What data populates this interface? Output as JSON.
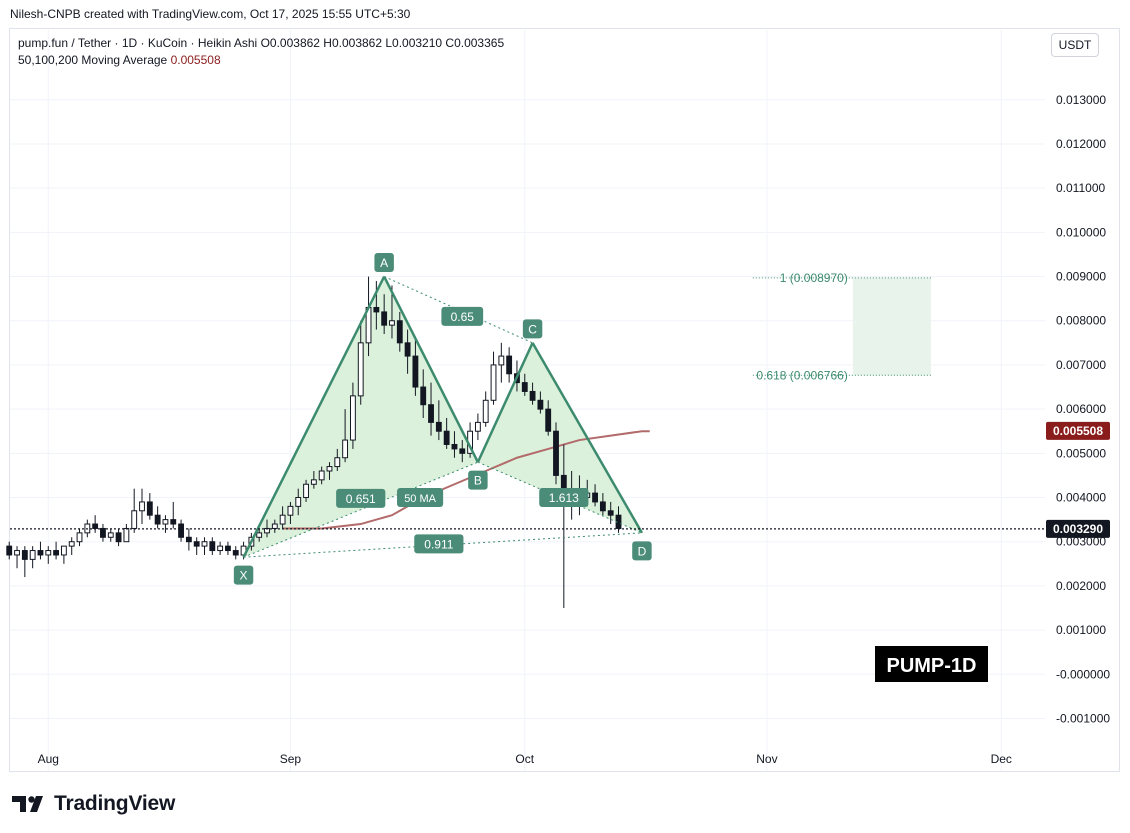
{
  "header": {
    "credit": "Nilesh-CNPB created with TradingView.com, Oct 17, 2025 15:55 UTC+5:30",
    "symbol_line": "pump.fun / Tether · 1D · KuCoin · Heikin Ashi",
    "ohlc": "O0.003862  H0.003862  L0.003210  C0.003365",
    "ma_label": "50,100,200 Moving Average",
    "ma_value": "0.005508",
    "currency": "USDT"
  },
  "footer": {
    "brand": "TradingView"
  },
  "watermark": "PUMP-1D",
  "colors": {
    "pattern_line": "#3d8b6e",
    "pattern_fill": "#d6efd5",
    "label_bg": "#4a8c77",
    "ma_line": "#b26a6a",
    "ma_badge": "#8b1c1c",
    "candle": "#131722",
    "zone_fill": "#e8f3ec",
    "zone_text": "#3d8b6e"
  },
  "chart_data": {
    "type": "candlestick",
    "price_scale": "linear",
    "y_ticks": [
      "0.013000",
      "0.012000",
      "0.011000",
      "0.010000",
      "0.009000",
      "0.008000",
      "0.007000",
      "0.006000",
      "0.005000",
      "0.004000",
      "0.003000",
      "0.002000",
      "0.001000",
      "-0.000000",
      "-0.001000"
    ],
    "y_tick_values": [
      0.013,
      0.012,
      0.011,
      0.01,
      0.009,
      0.008,
      0.007,
      0.006,
      0.005,
      0.004,
      0.003,
      0.002,
      0.001,
      0.0,
      -0.001
    ],
    "ylim": [
      -0.0016,
      0.0139
    ],
    "x_labels": [
      {
        "label": "Aug",
        "day": 0
      },
      {
        "label": "Sep",
        "day": 31
      },
      {
        "label": "Oct",
        "day": 61
      },
      {
        "label": "Nov",
        "day": 92
      },
      {
        "label": "Dec",
        "day": 122
      }
    ],
    "x_day_range": [
      -4.9,
      127.6
    ],
    "current_price": {
      "value": 0.00329,
      "label": "0.003290"
    },
    "ma_badge": {
      "value": 0.005508,
      "label": "0.005508"
    },
    "candles": [
      [
        0.0029,
        0.003,
        0.0026,
        0.0027
      ],
      [
        0.0027,
        0.0029,
        0.0024,
        0.0028
      ],
      [
        0.0028,
        0.0029,
        0.0022,
        0.0026
      ],
      [
        0.0026,
        0.0029,
        0.0024,
        0.0028
      ],
      [
        0.0028,
        0.003,
        0.0026,
        0.0027
      ],
      [
        0.0027,
        0.0029,
        0.0025,
        0.0028
      ],
      [
        0.0028,
        0.003,
        0.0026,
        0.0027
      ],
      [
        0.0027,
        0.0029,
        0.0025,
        0.0029
      ],
      [
        0.0029,
        0.0031,
        0.0027,
        0.003
      ],
      [
        0.003,
        0.0033,
        0.0029,
        0.0032
      ],
      [
        0.0032,
        0.0035,
        0.0031,
        0.0034
      ],
      [
        0.0034,
        0.0036,
        0.0032,
        0.0033
      ],
      [
        0.0033,
        0.0034,
        0.003,
        0.0031
      ],
      [
        0.0031,
        0.0033,
        0.003,
        0.0032
      ],
      [
        0.0032,
        0.0033,
        0.0029,
        0.003
      ],
      [
        0.003,
        0.0034,
        0.003,
        0.0033
      ],
      [
        0.0033,
        0.0042,
        0.0032,
        0.0037
      ],
      [
        0.0037,
        0.0042,
        0.0034,
        0.0039
      ],
      [
        0.0039,
        0.0041,
        0.0035,
        0.0036
      ],
      [
        0.0036,
        0.0038,
        0.0033,
        0.0034
      ],
      [
        0.0034,
        0.0036,
        0.0032,
        0.0035
      ],
      [
        0.0035,
        0.0039,
        0.0033,
        0.0034
      ],
      [
        0.0034,
        0.0035,
        0.003,
        0.0031
      ],
      [
        0.0031,
        0.0033,
        0.0028,
        0.003
      ],
      [
        0.003,
        0.0031,
        0.0027,
        0.0029
      ],
      [
        0.0029,
        0.0031,
        0.0027,
        0.003
      ],
      [
        0.003,
        0.0031,
        0.0027,
        0.0028
      ],
      [
        0.0028,
        0.003,
        0.0027,
        0.0029
      ],
      [
        0.0029,
        0.003,
        0.0027,
        0.0028
      ],
      [
        0.0028,
        0.0029,
        0.0026,
        0.0027
      ],
      [
        0.0027,
        0.003,
        0.0026,
        0.0029
      ],
      [
        0.0029,
        0.0032,
        0.0028,
        0.0031
      ],
      [
        0.0031,
        0.0033,
        0.003,
        0.0032
      ],
      [
        0.0032,
        0.0035,
        0.0031,
        0.0033
      ],
      [
        0.0033,
        0.0035,
        0.0032,
        0.0034
      ],
      [
        0.0034,
        0.0038,
        0.0033,
        0.0036
      ],
      [
        0.0036,
        0.0039,
        0.0034,
        0.0038
      ],
      [
        0.0038,
        0.0042,
        0.0036,
        0.004
      ],
      [
        0.004,
        0.0044,
        0.0039,
        0.0043
      ],
      [
        0.0043,
        0.0046,
        0.0042,
        0.0044
      ],
      [
        0.0044,
        0.0047,
        0.0043,
        0.0046
      ],
      [
        0.0046,
        0.0048,
        0.0044,
        0.0047
      ],
      [
        0.0047,
        0.0051,
        0.0046,
        0.0049
      ],
      [
        0.0049,
        0.006,
        0.0048,
        0.0053
      ],
      [
        0.0053,
        0.0066,
        0.0051,
        0.0063
      ],
      [
        0.0063,
        0.008,
        0.0061,
        0.0075
      ],
      [
        0.0075,
        0.009,
        0.0072,
        0.0083
      ],
      [
        0.0083,
        0.0089,
        0.0078,
        0.0082
      ],
      [
        0.0082,
        0.0086,
        0.0077,
        0.0079
      ],
      [
        0.0079,
        0.0088,
        0.0076,
        0.008
      ],
      [
        0.008,
        0.0082,
        0.0073,
        0.0075
      ],
      [
        0.0075,
        0.0078,
        0.0068,
        0.0072
      ],
      [
        0.0072,
        0.0076,
        0.0063,
        0.0065
      ],
      [
        0.0065,
        0.0069,
        0.0058,
        0.0061
      ],
      [
        0.0061,
        0.0066,
        0.0054,
        0.0057
      ],
      [
        0.0057,
        0.0062,
        0.0053,
        0.0055
      ],
      [
        0.0055,
        0.0058,
        0.0051,
        0.0052
      ],
      [
        0.0052,
        0.0055,
        0.0049,
        0.0051
      ],
      [
        0.0051,
        0.0053,
        0.0048,
        0.005
      ],
      [
        0.005,
        0.0057,
        0.0049,
        0.0055
      ],
      [
        0.0055,
        0.0059,
        0.0053,
        0.0057
      ],
      [
        0.0057,
        0.0064,
        0.0056,
        0.0062
      ],
      [
        0.0062,
        0.0073,
        0.0061,
        0.007
      ],
      [
        0.007,
        0.0075,
        0.0066,
        0.0072
      ],
      [
        0.0072,
        0.0074,
        0.0066,
        0.0068
      ],
      [
        0.0068,
        0.0071,
        0.0064,
        0.0066
      ],
      [
        0.0066,
        0.0068,
        0.0063,
        0.0064
      ],
      [
        0.0064,
        0.0066,
        0.0061,
        0.0062
      ],
      [
        0.0062,
        0.0064,
        0.0059,
        0.006
      ],
      [
        0.006,
        0.0062,
        0.0054,
        0.0055
      ],
      [
        0.0055,
        0.0057,
        0.0043,
        0.0045
      ],
      [
        0.0045,
        0.0052,
        0.0015,
        0.0038
      ],
      [
        0.0038,
        0.0046,
        0.0035,
        0.0042
      ],
      [
        0.0042,
        0.0045,
        0.0036,
        0.004
      ],
      [
        0.004,
        0.0044,
        0.0038,
        0.0041
      ],
      [
        0.0041,
        0.0043,
        0.0038,
        0.0039
      ],
      [
        0.0039,
        0.0041,
        0.0036,
        0.0037
      ],
      [
        0.0037,
        0.0039,
        0.0034,
        0.0036
      ],
      [
        0.0036,
        0.0038,
        0.0032,
        0.0033
      ]
    ],
    "candle_start_day": -5,
    "moving_average": {
      "name": "50 MA",
      "points": [
        [
          30,
          0.0033
        ],
        [
          35,
          0.0033
        ],
        [
          40,
          0.0034
        ],
        [
          44,
          0.0036
        ],
        [
          48,
          0.004
        ],
        [
          52,
          0.0043
        ],
        [
          56,
          0.0046
        ],
        [
          60,
          0.0049
        ],
        [
          64,
          0.0051
        ],
        [
          68,
          0.0053
        ],
        [
          72,
          0.0054
        ],
        [
          76,
          0.0055
        ],
        [
          77,
          0.0055
        ]
      ]
    },
    "harmonic_pattern": {
      "points": [
        {
          "label": "X",
          "day": 25,
          "price": 0.00265
        },
        {
          "label": "A",
          "day": 43,
          "price": 0.009
        },
        {
          "label": "B",
          "day": 55,
          "price": 0.0048
        },
        {
          "label": "C",
          "day": 62,
          "price": 0.0075
        },
        {
          "label": "D",
          "day": 76,
          "price": 0.0032
        }
      ],
      "ratios": [
        {
          "label": "0.651",
          "day": 40,
          "price": 0.00398
        },
        {
          "label": "0.65",
          "day": 53,
          "price": 0.0081
        },
        {
          "label": "1.613",
          "day": 66,
          "price": 0.004
        },
        {
          "label": "0.911",
          "day": 50,
          "price": 0.00295
        }
      ]
    },
    "target_zone": {
      "start_day": 103,
      "end_day": 113,
      "upper": {
        "value": 0.00897,
        "label": "1 (0.008970)"
      },
      "lower": {
        "value": 0.006766,
        "label": "0.618 (0.006766)"
      }
    },
    "ma_chart_label": "50 MA"
  }
}
